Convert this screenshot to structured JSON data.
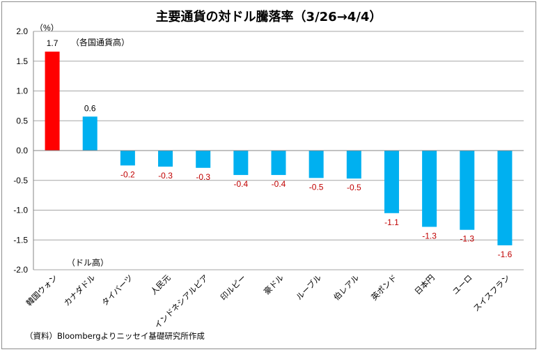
{
  "chart_data": {
    "type": "bar",
    "title": "主要通貨の対ドル騰落率（3/26→4/4）",
    "ylabel": "（%）",
    "ylim": [
      -2.0,
      2.0
    ],
    "yticks": [
      "2.0",
      "1.5",
      "1.0",
      "0.5",
      "0.0",
      "-0.5",
      "-1.0",
      "-1.5",
      "-2.0"
    ],
    "ytick_values": [
      2.0,
      1.5,
      1.0,
      0.5,
      0.0,
      -0.5,
      -1.0,
      -1.5,
      -2.0
    ],
    "grid": true,
    "categories": [
      "韓国ウォン",
      "カナダドル",
      "タイバーツ",
      "人民元",
      "インドネシアルピア",
      "印ルピー",
      "豪ドル",
      "ルーブル",
      "伯レアル",
      "英ポンド",
      "日本円",
      "ユーロ",
      "スイスフラン"
    ],
    "values": [
      1.66,
      0.57,
      -0.25,
      -0.27,
      -0.29,
      -0.41,
      -0.41,
      -0.46,
      -0.47,
      -1.05,
      -1.28,
      -1.33,
      -1.59
    ],
    "data_labels": [
      "1.7",
      "0.6",
      "-0.2",
      "-0.3",
      "-0.3",
      "-0.4",
      "-0.4",
      "-0.5",
      "-0.5",
      "-1.1",
      "-1.3",
      "-1.3",
      "-1.6"
    ],
    "colors": {
      "highlight_bar": "#ff0000",
      "bar": "#00b0f0",
      "negative_label": "#c00000",
      "positive_label": "#000000",
      "grid": "#a6a6a6",
      "axis": "#868686"
    },
    "annotations": {
      "top": "（各国通貨高）",
      "bottom": "（ドル高）"
    },
    "source": "（資料）Bloombergよりニッセイ基礎研究所作成"
  }
}
